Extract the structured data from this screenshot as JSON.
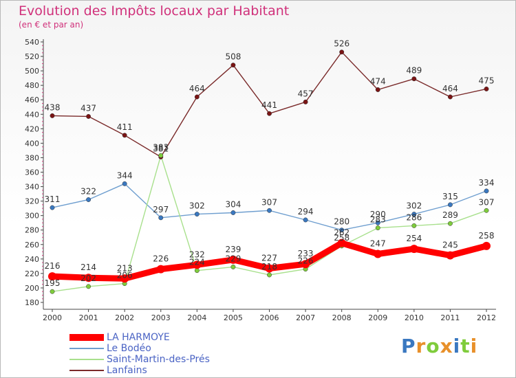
{
  "chart_data": {
    "type": "line",
    "title": "Evolution des Impôts locaux par Habitant",
    "subtitle": "(en € et par an)",
    "x": [
      "2000",
      "2001",
      "2002",
      "2003",
      "2004",
      "2005",
      "2006",
      "2007",
      "2008",
      "2009",
      "2010",
      "2011",
      "2012"
    ],
    "ylim": [
      180,
      540
    ],
    "yticks": [
      180,
      200,
      220,
      240,
      260,
      280,
      300,
      320,
      340,
      360,
      380,
      400,
      420,
      440,
      460,
      480,
      500,
      520,
      540
    ],
    "grid": false,
    "legend_position": "bottom-left",
    "series": [
      {
        "name": "LA HARMOYE",
        "color": "#ff0000",
        "marker": "#ff0000",
        "values": [
          216,
          214,
          213,
          226,
          232,
          239,
          227,
          233,
          262,
          247,
          254,
          245,
          258
        ]
      },
      {
        "name": "Le Bodéo",
        "color": "#6e9ecf",
        "marker": "#3a78c0",
        "values": [
          311,
          322,
          344,
          297,
          302,
          304,
          307,
          294,
          280,
          290,
          302,
          315,
          334
        ]
      },
      {
        "name": "Saint-Martin-des-Prés",
        "color": "#a8e08c",
        "marker": "#7fcc3c",
        "values": [
          195,
          202,
          206,
          383,
          224,
          229,
          218,
          226,
          258,
          283,
          286,
          289,
          307
        ]
      },
      {
        "name": "Lanfains",
        "color": "#7a2a2a",
        "marker": "#7a1414",
        "values": [
          438,
          437,
          411,
          381,
          464,
          508,
          441,
          457,
          526,
          474,
          489,
          464,
          475
        ]
      }
    ]
  },
  "logo": {
    "text": "Proxiti"
  }
}
